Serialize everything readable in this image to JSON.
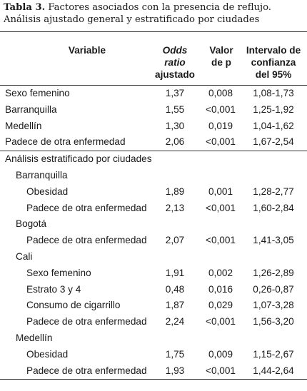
{
  "caption": {
    "label": "Tabla 3.",
    "text": " Factores asociados con la presencia de reflujo. Análisis ajustado general y estratificado por ciudades"
  },
  "headers": {
    "variable": "Variable",
    "odds_1": "Odds",
    "odds_2": "ratio",
    "odds_3": "ajustado",
    "valor_1": "Valor",
    "valor_2": "de p",
    "int_1": "Intervalo de",
    "int_2": "confianza",
    "int_3": "del 95%"
  },
  "general": [
    {
      "variable": "Sexo femenino",
      "odds": "1,37",
      "p": "0,008",
      "ci": "1,08-1,73"
    },
    {
      "variable": "Barranquilla",
      "odds": "1,55",
      "p": "<0,001",
      "ci": "1,25-1,92"
    },
    {
      "variable": "Medellín",
      "odds": "1,30",
      "p": "0,019",
      "ci": "1,04-1,62"
    },
    {
      "variable": "Padece de otra enfermedad",
      "odds": "2,06",
      "p": "<0,001",
      "ci": "1,67-2,54"
    }
  ],
  "stratified_title": "Análisis estratificado por ciudades",
  "cities": [
    {
      "name": "Barranquilla",
      "rows": [
        {
          "variable": "Obesidad",
          "odds": "1,89",
          "p": "0,001",
          "ci": "1,28-2,77"
        },
        {
          "variable": "Padece de otra enfermedad",
          "odds": "2,13",
          "p": "<0,001",
          "ci": "1,60-2,84"
        }
      ]
    },
    {
      "name": "Bogotá",
      "rows": [
        {
          "variable": "Padece de otra enfermedad",
          "odds": "2,07",
          "p": "<0,001",
          "ci": "1,41-3,05"
        }
      ]
    },
    {
      "name": "Cali",
      "rows": [
        {
          "variable": "Sexo femenino",
          "odds": "1,91",
          "p": "0,002",
          "ci": "1,26-2,89"
        },
        {
          "variable": "Estrato 3 y 4",
          "odds": "0,48",
          "p": "0,016",
          "ci": "0,26-0,87"
        },
        {
          "variable": "Consumo de cigarrillo",
          "odds": "1,87",
          "p": "0,029",
          "ci": "1,07-3,28"
        },
        {
          "variable": "Padece de otra enfermedad",
          "odds": "2,24",
          "p": "<0,001",
          "ci": "1,56-3,20"
        }
      ]
    },
    {
      "name": "Medellín",
      "rows": [
        {
          "variable": "Obesidad",
          "odds": "1,75",
          "p": "0,009",
          "ci": "1,15-2,67"
        },
        {
          "variable": "Padece de otra enfermedad",
          "odds": "1,93",
          "p": "<0,001",
          "ci": "1,44-2,64"
        }
      ]
    }
  ]
}
